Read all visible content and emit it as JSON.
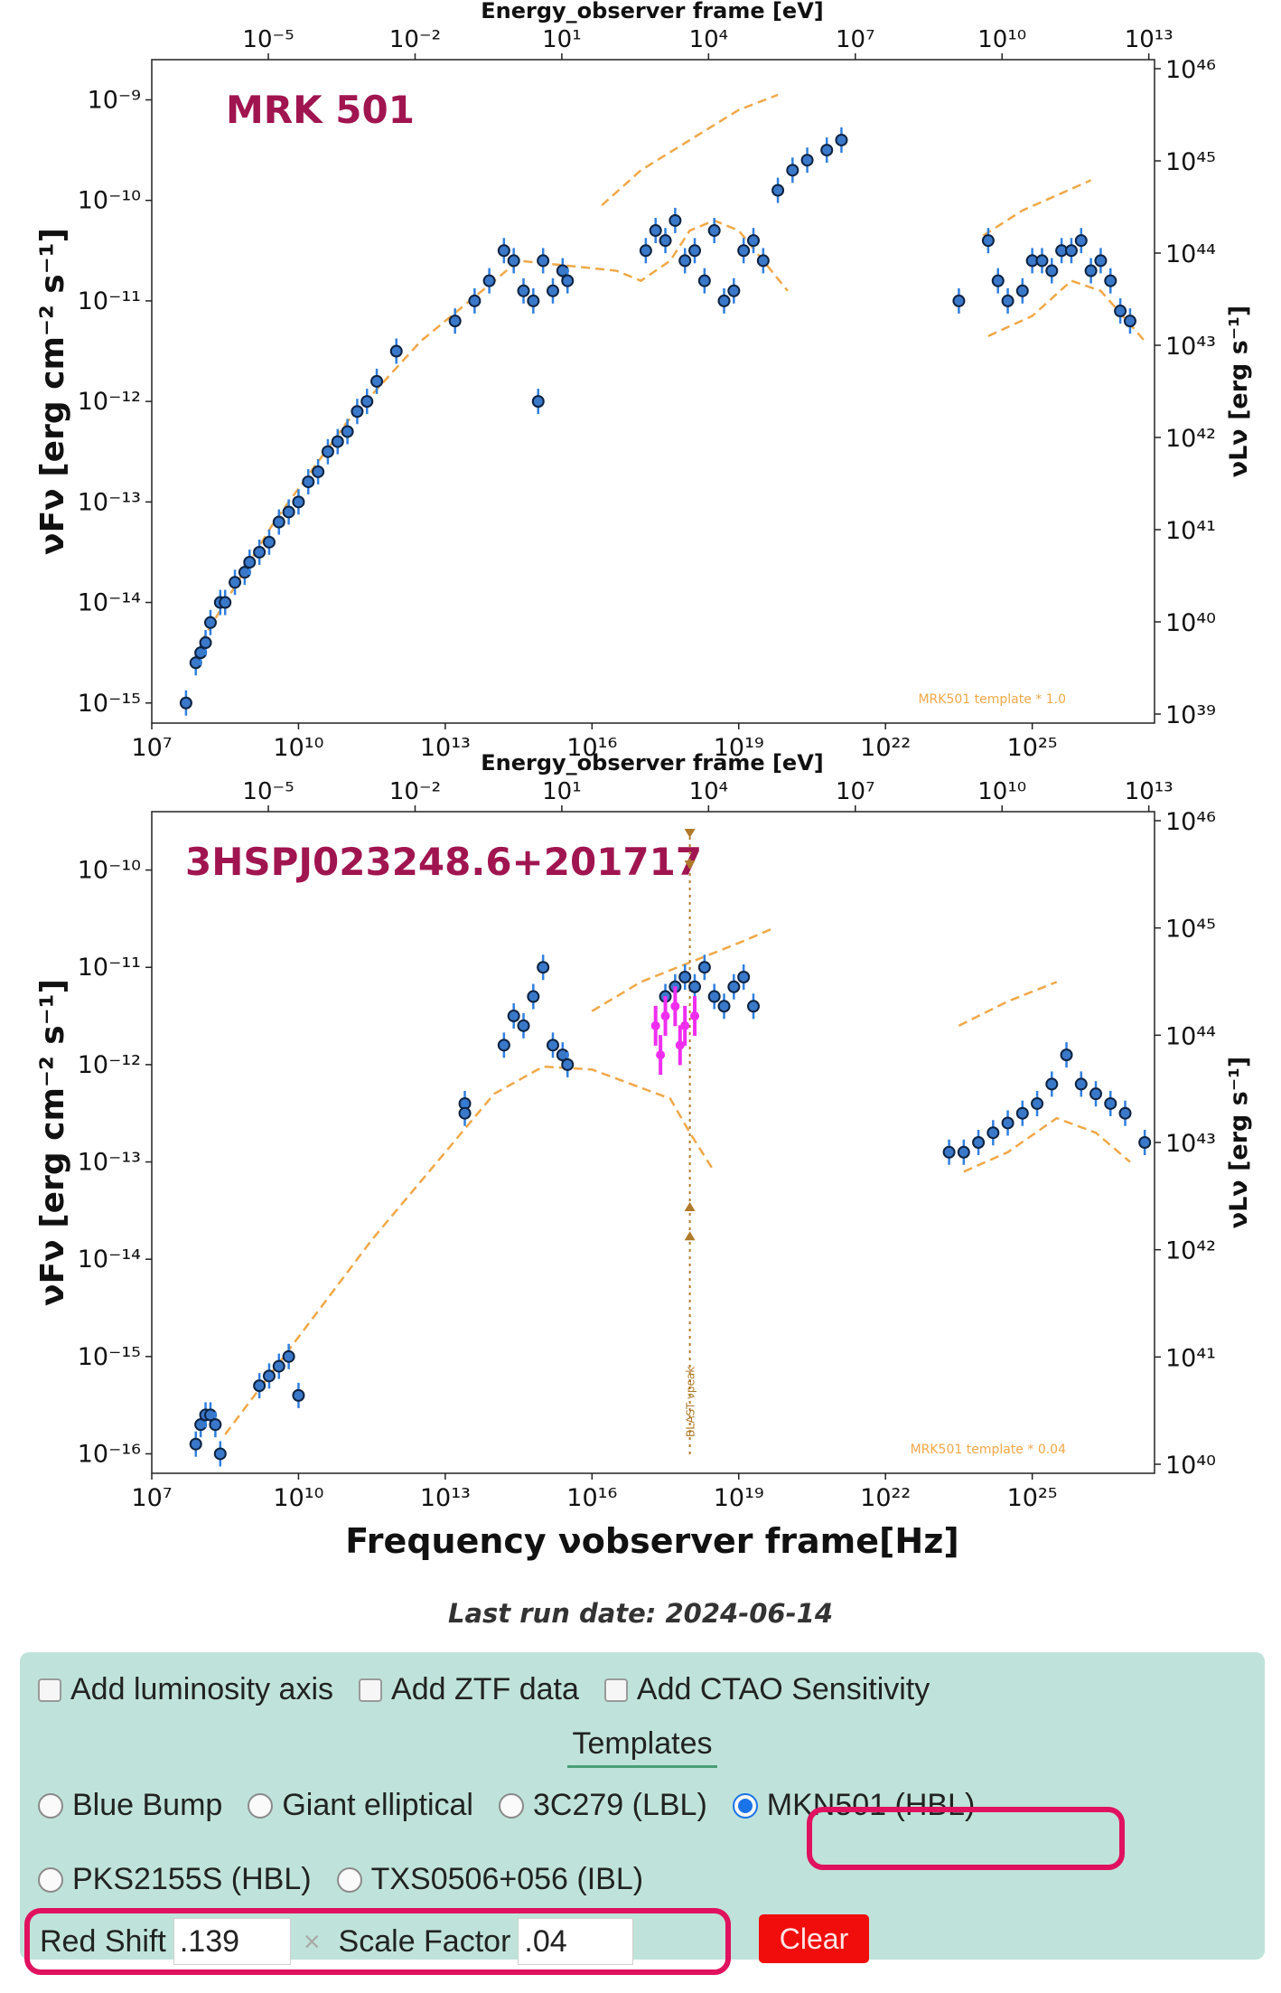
{
  "chart_data": [
    {
      "type": "scatter",
      "title": "MRK 501",
      "template_label": "MRK501 template * 1.0",
      "xlabel": "",
      "ylabel": "νFν [erg cm⁻² s⁻¹]",
      "ylabel_right": "νLν [erg s⁻¹]",
      "xlabel_top": "Energy_observer frame [eV]",
      "xlim_log10_hz": [
        7,
        27.5
      ],
      "ylim_log10": [
        -15.2,
        -8.6
      ],
      "x_ticks": [
        "10⁷",
        "10¹⁰",
        "10¹³",
        "10¹⁶",
        "10¹⁹",
        "10²²",
        "10²⁵"
      ],
      "y_ticks": [
        "10⁻⁹",
        "10⁻¹⁰",
        "10⁻¹¹",
        "10⁻¹²",
        "10⁻¹³",
        "10⁻¹⁴",
        "10⁻¹⁵"
      ],
      "top_ticks": [
        "10⁻⁵",
        "10⁻²",
        "10¹",
        "10⁴",
        "10⁷",
        "10¹⁰",
        "10¹³"
      ],
      "right_ticks": [
        "10⁴⁶",
        "10⁴⁵",
        "10⁴⁴",
        "10⁴³",
        "10⁴²",
        "10⁴¹",
        "10⁴⁰",
        "10³⁹"
      ],
      "points": [
        [
          7.7,
          -15.0
        ],
        [
          7.9,
          -14.6
        ],
        [
          8.0,
          -14.5
        ],
        [
          8.1,
          -14.4
        ],
        [
          8.2,
          -14.2
        ],
        [
          8.4,
          -14.0
        ],
        [
          8.5,
          -14.0
        ],
        [
          8.7,
          -13.8
        ],
        [
          8.9,
          -13.7
        ],
        [
          9.0,
          -13.6
        ],
        [
          9.2,
          -13.5
        ],
        [
          9.4,
          -13.4
        ],
        [
          9.6,
          -13.2
        ],
        [
          9.8,
          -13.1
        ],
        [
          10.0,
          -13.0
        ],
        [
          10.2,
          -12.8
        ],
        [
          10.4,
          -12.7
        ],
        [
          10.6,
          -12.5
        ],
        [
          10.8,
          -12.4
        ],
        [
          11.0,
          -12.3
        ],
        [
          11.2,
          -12.1
        ],
        [
          11.4,
          -12.0
        ],
        [
          11.6,
          -11.8
        ],
        [
          12.0,
          -11.5
        ],
        [
          13.2,
          -11.2
        ],
        [
          13.6,
          -11.0
        ],
        [
          13.9,
          -10.8
        ],
        [
          14.2,
          -10.5
        ],
        [
          14.4,
          -10.6
        ],
        [
          14.6,
          -10.9
        ],
        [
          14.8,
          -11.0
        ],
        [
          15.0,
          -10.6
        ],
        [
          15.2,
          -10.9
        ],
        [
          15.4,
          -10.7
        ],
        [
          15.5,
          -10.8
        ],
        [
          14.9,
          -12.0
        ],
        [
          17.1,
          -10.5
        ],
        [
          17.3,
          -10.3
        ],
        [
          17.5,
          -10.4
        ],
        [
          17.7,
          -10.2
        ],
        [
          17.9,
          -10.6
        ],
        [
          18.1,
          -10.5
        ],
        [
          18.3,
          -10.8
        ],
        [
          18.5,
          -10.3
        ],
        [
          18.7,
          -11.0
        ],
        [
          18.9,
          -10.9
        ],
        [
          19.1,
          -10.5
        ],
        [
          19.3,
          -10.4
        ],
        [
          19.5,
          -10.6
        ],
        [
          19.8,
          -9.9
        ],
        [
          20.1,
          -9.7
        ],
        [
          20.4,
          -9.6
        ],
        [
          20.8,
          -9.5
        ],
        [
          21.1,
          -9.4
        ],
        [
          23.5,
          -11.0
        ],
        [
          24.1,
          -10.4
        ],
        [
          24.3,
          -10.8
        ],
        [
          24.5,
          -11.0
        ],
        [
          24.8,
          -10.9
        ],
        [
          25.0,
          -10.6
        ],
        [
          25.2,
          -10.6
        ],
        [
          25.4,
          -10.7
        ],
        [
          25.6,
          -10.5
        ],
        [
          25.8,
          -10.5
        ],
        [
          26.0,
          -10.4
        ],
        [
          26.2,
          -10.7
        ],
        [
          26.4,
          -10.6
        ],
        [
          26.6,
          -10.8
        ],
        [
          26.8,
          -11.1
        ],
        [
          27.0,
          -11.2
        ]
      ],
      "template_curve": [
        [
          8.0,
          -14.4
        ],
        [
          9.5,
          -13.2
        ],
        [
          11.0,
          -12.2
        ],
        [
          12.5,
          -11.4
        ],
        [
          13.5,
          -11.0
        ],
        [
          14.5,
          -10.6
        ],
        [
          15.5,
          -10.65
        ],
        [
          16.5,
          -10.7
        ],
        [
          17.0,
          -10.8
        ],
        [
          17.6,
          -10.6
        ],
        [
          18.0,
          -10.3
        ],
        [
          18.5,
          -10.2
        ],
        [
          19.0,
          -10.3
        ],
        [
          19.5,
          -10.6
        ],
        [
          20.0,
          -10.9
        ]
      ],
      "template_upper": [
        [
          16.2,
          -10.05
        ],
        [
          17.0,
          -9.7
        ],
        [
          18.0,
          -9.4
        ],
        [
          19.0,
          -9.1
        ],
        [
          19.8,
          -8.95
        ]
      ],
      "template_gamma": [
        [
          24.0,
          -10.35
        ],
        [
          24.8,
          -10.1
        ],
        [
          25.5,
          -9.95
        ],
        [
          26.2,
          -9.8
        ]
      ],
      "template_gamma_low": [
        [
          24.1,
          -11.35
        ],
        [
          25.0,
          -11.15
        ],
        [
          25.8,
          -10.8
        ],
        [
          26.4,
          -10.9
        ],
        [
          27.3,
          -11.4
        ]
      ]
    },
    {
      "type": "scatter",
      "title": "3HSPJ023248.6+201717",
      "template_label": "MRK501 template * 0.04",
      "peak_label": "BLAST νpeak",
      "xlabel": "Frequency νobserver frame[Hz]",
      "ylabel": "νFν [erg cm⁻² s⁻¹]",
      "ylabel_right": "νLν [erg s⁻¹]",
      "xlabel_top": "Energy_observer frame [eV]",
      "xlim_log10_hz": [
        7,
        27.5
      ],
      "ylim_log10": [
        -16.2,
        -9.4
      ],
      "x_ticks": [
        "10⁷",
        "10¹⁰",
        "10¹³",
        "10¹⁶",
        "10¹⁹",
        "10²²",
        "10²⁵"
      ],
      "y_ticks": [
        "10⁻¹⁰",
        "10⁻¹¹",
        "10⁻¹²",
        "10⁻¹³",
        "10⁻¹⁴",
        "10⁻¹⁵",
        "10⁻¹⁶"
      ],
      "top_ticks": [
        "10⁻⁵",
        "10⁻²",
        "10¹",
        "10⁴",
        "10⁷",
        "10¹⁰",
        "10¹³"
      ],
      "right_ticks": [
        "10⁴⁶",
        "10⁴⁵",
        "10⁴⁴",
        "10⁴³",
        "10⁴²",
        "10⁴¹",
        "10⁴⁰"
      ],
      "peak_log10_hz": 18.0,
      "points": [
        [
          7.9,
          -15.9
        ],
        [
          8.0,
          -15.7
        ],
        [
          8.1,
          -15.6
        ],
        [
          8.2,
          -15.6
        ],
        [
          8.3,
          -15.7
        ],
        [
          8.4,
          -16.0
        ],
        [
          9.2,
          -15.3
        ],
        [
          9.4,
          -15.2
        ],
        [
          9.6,
          -15.1
        ],
        [
          9.8,
          -15.0
        ],
        [
          10.0,
          -15.4
        ],
        [
          13.4,
          -12.4
        ],
        [
          13.4,
          -12.5
        ],
        [
          14.2,
          -11.8
        ],
        [
          14.4,
          -11.5
        ],
        [
          14.6,
          -11.6
        ],
        [
          14.8,
          -11.3
        ],
        [
          15.0,
          -11.0
        ],
        [
          15.2,
          -11.8
        ],
        [
          15.4,
          -11.9
        ],
        [
          15.5,
          -12.0
        ],
        [
          17.5,
          -11.3
        ],
        [
          17.7,
          -11.2
        ],
        [
          17.9,
          -11.1
        ],
        [
          18.1,
          -11.2
        ],
        [
          18.3,
          -11.0
        ],
        [
          18.5,
          -11.3
        ],
        [
          18.7,
          -11.4
        ],
        [
          18.9,
          -11.2
        ],
        [
          19.1,
          -11.1
        ],
        [
          19.3,
          -11.4
        ],
        [
          23.3,
          -12.9
        ],
        [
          23.6,
          -12.9
        ],
        [
          23.9,
          -12.8
        ],
        [
          24.2,
          -12.7
        ],
        [
          24.5,
          -12.6
        ],
        [
          24.8,
          -12.5
        ],
        [
          25.1,
          -12.4
        ],
        [
          25.4,
          -12.2
        ],
        [
          25.7,
          -11.9
        ],
        [
          26.0,
          -12.2
        ],
        [
          26.3,
          -12.3
        ],
        [
          26.6,
          -12.4
        ],
        [
          26.9,
          -12.5
        ],
        [
          27.3,
          -12.8
        ]
      ],
      "points_magenta": [
        [
          17.3,
          -11.6
        ],
        [
          17.5,
          -11.5
        ],
        [
          17.7,
          -11.4
        ],
        [
          17.9,
          -11.6
        ],
        [
          18.1,
          -11.5
        ],
        [
          17.4,
          -11.9
        ],
        [
          17.8,
          -11.8
        ]
      ],
      "template_curve": [
        [
          8.5,
          -15.8
        ],
        [
          10.0,
          -14.8
        ],
        [
          11.5,
          -13.8
        ],
        [
          13.0,
          -12.9
        ],
        [
          14.0,
          -12.3
        ],
        [
          15.0,
          -12.02
        ],
        [
          16.0,
          -12.05
        ],
        [
          16.8,
          -12.2
        ],
        [
          17.6,
          -12.35
        ],
        [
          18.0,
          -12.7
        ],
        [
          18.5,
          -13.1
        ]
      ],
      "template_upper": [
        [
          16.0,
          -11.45
        ],
        [
          17.0,
          -11.15
        ],
        [
          18.0,
          -10.95
        ],
        [
          19.0,
          -10.75
        ],
        [
          19.7,
          -10.6
        ]
      ],
      "template_gamma": [
        [
          23.5,
          -11.6
        ],
        [
          24.5,
          -11.35
        ],
        [
          25.5,
          -11.15
        ]
      ],
      "template_gamma_low": [
        [
          23.6,
          -13.1
        ],
        [
          24.5,
          -12.9
        ],
        [
          25.5,
          -12.55
        ],
        [
          26.3,
          -12.7
        ],
        [
          27.0,
          -13.0
        ]
      ]
    }
  ],
  "page": {
    "last_run": "Last run date: 2024-06-14"
  },
  "controls": {
    "checkboxes": [
      "Add luminosity axis",
      "Add ZTF data",
      "Add CTAO Sensitivity"
    ],
    "templates_title": "Templates",
    "templates_row1": [
      "Blue Bump",
      "Giant elliptical",
      "3C279 (LBL)",
      "MKN501 (HBL)"
    ],
    "templates_row2": [
      "PKS2155S (HBL)",
      "TXS0506+056 (IBL)"
    ],
    "selected_template": "MKN501 (HBL)",
    "redshift_label": "Red Shift",
    "redshift_value": ".139",
    "scale_label": "Scale Factor",
    "scale_value": ".04",
    "clear_x": "×",
    "clear_label": "Clear"
  },
  "colors": {
    "point_fill": "#3a78c9",
    "point_edge": "#0d2240",
    "errorbar": "#2f7fe0",
    "template": "#f0a848",
    "magenta": "#f02ef0",
    "title": "#a01550",
    "peak": "#b07a2a"
  }
}
